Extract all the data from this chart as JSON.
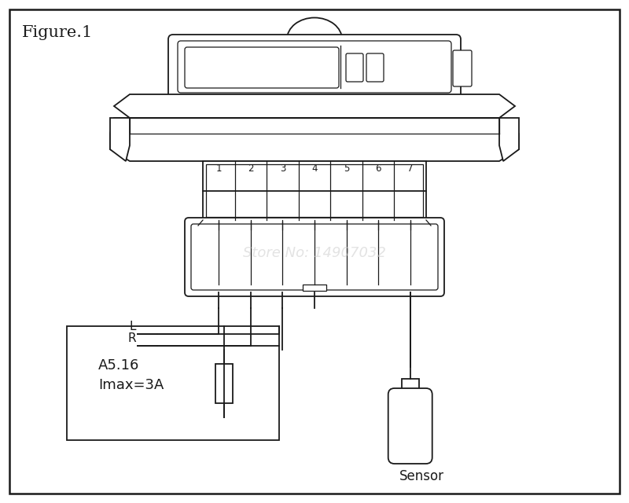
{
  "title": "Figure.1",
  "line_color": "#1a1a1a",
  "bg_color": "#ffffff",
  "watermark": "Store No: 14907032",
  "label_A": "A5.16",
  "label_I": "Imax=3A",
  "label_L": "L",
  "label_R": "R",
  "label_sensor": "Sensor",
  "terminal_labels": [
    "1",
    "2",
    "3",
    "4",
    "5",
    "6",
    "7"
  ],
  "fig_w": 8.0,
  "fig_h": 6.4,
  "dpi": 100
}
